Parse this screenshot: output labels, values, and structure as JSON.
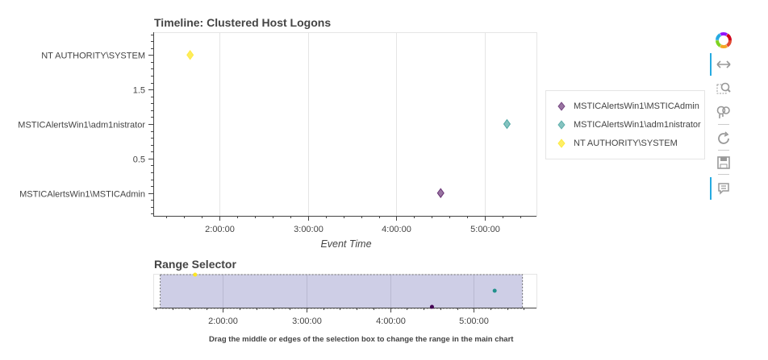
{
  "chart_data": [
    {
      "type": "scatter",
      "title": "Timeline: Clustered Host Logons",
      "xlabel": "Event Time",
      "ylabel": "",
      "x_ticks": [
        "2:00:00",
        "3:00:00",
        "4:00:00",
        "5:00:00"
      ],
      "xlim": [
        "1:15:00",
        "5:35:00"
      ],
      "y_ticks": [
        {
          "value": 0,
          "label": "MSTICAlertsWin1\\MSTICAdmin"
        },
        {
          "value": 0.5,
          "label": "0.5"
        },
        {
          "value": 1,
          "label": "MSTICAlertsWin1\\adm1nistrator"
        },
        {
          "value": 1.5,
          "label": "1.5"
        },
        {
          "value": 2,
          "label": "NT AUTHORITY\\SYSTEM"
        }
      ],
      "ylim": [
        -0.33,
        2.33
      ],
      "grid": "vertical",
      "legend_position": "right",
      "series": [
        {
          "name": "MSTICAlertsWin1\\MSTICAdmin",
          "color": "#440154",
          "marker": "diamond",
          "points": [
            {
              "x": "4:30:00",
              "y": 0
            }
          ]
        },
        {
          "name": "MSTICAlertsWin1\\adm1nistrator",
          "color": "#21918c",
          "marker": "diamond",
          "points": [
            {
              "x": "5:15:00",
              "y": 1
            }
          ]
        },
        {
          "name": "NT AUTHORITY\\SYSTEM",
          "color": "#fde725",
          "marker": "diamond",
          "points": [
            {
              "x": "1:40:00",
              "y": 2
            }
          ]
        }
      ]
    },
    {
      "type": "scatter",
      "title": "Range Selector",
      "x_ticks": [
        "2:00:00",
        "3:00:00",
        "4:00:00",
        "5:00:00"
      ],
      "xlim": [
        "1:10:00",
        "5:45:00"
      ],
      "selection": [
        "1:15:00",
        "5:35:00"
      ],
      "series": [
        {
          "name": "MSTICAlertsWin1\\MSTICAdmin",
          "color": "#440154",
          "points": [
            {
              "x": "4:30:00",
              "y": 0
            }
          ]
        },
        {
          "name": "MSTICAlertsWin1\\adm1nistrator",
          "color": "#21918c",
          "points": [
            {
              "x": "5:15:00",
              "y": 1
            }
          ]
        },
        {
          "name": "NT AUTHORITY\\SYSTEM",
          "color": "#fde725",
          "points": [
            {
              "x": "1:40:00",
              "y": 2
            }
          ]
        }
      ]
    }
  ],
  "footnote": "Drag the middle or edges of the selection box to change the range in the main chart",
  "toolbar": {
    "tools": [
      {
        "name": "bokeh-logo",
        "icon": "bokeh-logo-icon"
      },
      {
        "name": "pan",
        "icon": "pan-icon",
        "active": true
      },
      {
        "name": "box-zoom",
        "icon": "box-zoom-icon"
      },
      {
        "name": "wheel-zoom",
        "icon": "wheel-zoom-icon"
      },
      {
        "name": "reset",
        "icon": "reset-icon"
      },
      {
        "name": "save",
        "icon": "save-icon"
      },
      {
        "name": "hover",
        "icon": "hover-icon",
        "active": true
      }
    ]
  }
}
